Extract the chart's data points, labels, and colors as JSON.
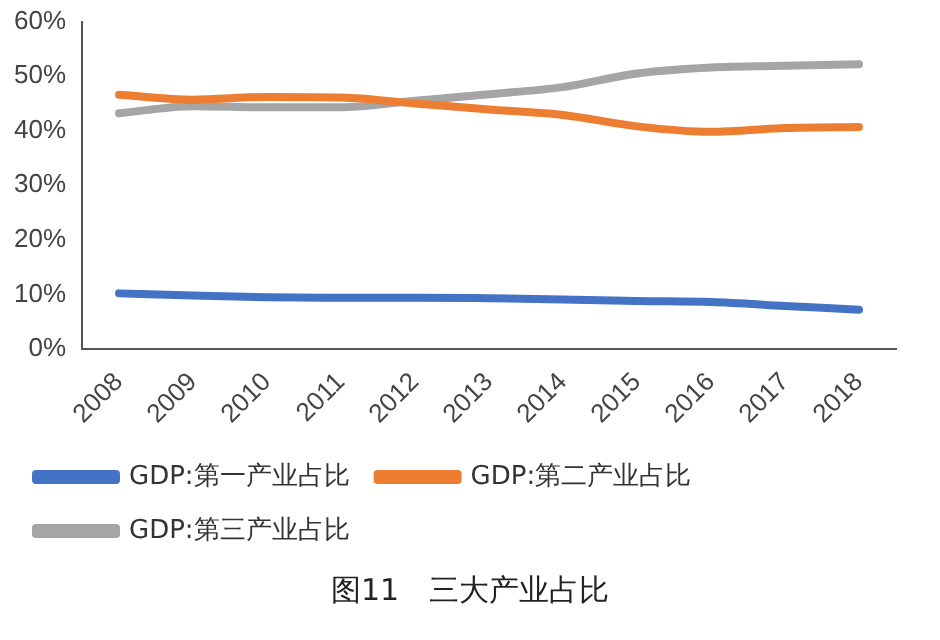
{
  "chart_data": {
    "type": "line",
    "title": "图11　三大产业占比",
    "categories": [
      "2008",
      "2009",
      "2010",
      "2011",
      "2012",
      "2013",
      "2014",
      "2015",
      "2016",
      "2017",
      "2018"
    ],
    "series": [
      {
        "name": "GDP:第一产业占比",
        "color": "#4472c4",
        "values": [
          10.2,
          9.8,
          9.5,
          9.4,
          9.4,
          9.3,
          9.1,
          8.8,
          8.6,
          7.9,
          7.2
        ]
      },
      {
        "name": "GDP:第二产业占比",
        "color": "#ed7d31",
        "values": [
          46.6,
          45.7,
          46.2,
          46.1,
          45.0,
          43.9,
          42.9,
          40.8,
          39.8,
          40.5,
          40.7
        ]
      },
      {
        "name": "GDP:第三产业占比",
        "color": "#a5a5a5",
        "values": [
          43.2,
          44.5,
          44.3,
          44.3,
          45.5,
          46.7,
          48.0,
          50.5,
          51.6,
          51.9,
          52.2
        ]
      }
    ],
    "ylim": [
      0,
      60
    ],
    "yticks": [
      {
        "value": 0,
        "label": "0%"
      },
      {
        "value": 10,
        "label": "10%"
      },
      {
        "value": 20,
        "label": "20%"
      },
      {
        "value": 30,
        "label": "30%"
      },
      {
        "value": 40,
        "label": "40%"
      },
      {
        "value": 50,
        "label": "50%"
      },
      {
        "value": 60,
        "label": "60%"
      }
    ],
    "grid": false,
    "legend": "bottom",
    "marker": "none",
    "line_style": "solid"
  }
}
